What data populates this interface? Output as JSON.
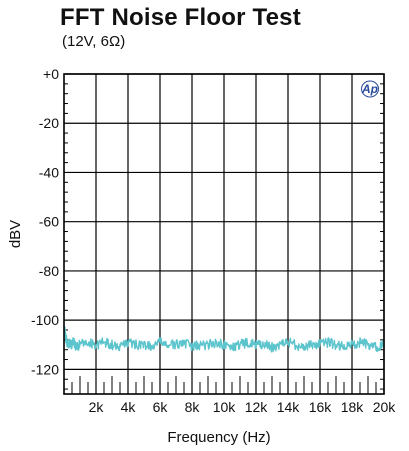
{
  "chart_data": {
    "type": "line",
    "title": "FFT Noise Floor Test",
    "subtitle": "(12V, 6Ω)",
    "xlabel": "Frequency (Hz)",
    "ylabel": "dBV",
    "xlim": [
      0,
      20000
    ],
    "ylim": [
      -130,
      0
    ],
    "y_ticks": [
      0,
      -20,
      -40,
      -60,
      -80,
      -100,
      -120
    ],
    "y_tick_labels": [
      "+0",
      "-20",
      "-40",
      "-60",
      "-80",
      "-100",
      "-120"
    ],
    "x_ticks": [
      2000,
      4000,
      6000,
      8000,
      10000,
      12000,
      14000,
      16000,
      18000,
      20000
    ],
    "x_tick_labels": [
      "2k",
      "4k",
      "6k",
      "8k",
      "10k",
      "12k",
      "14k",
      "16k",
      "18k",
      "20k"
    ],
    "grid": true,
    "logo": "Ap",
    "colors": {
      "series": "#5cc4cc",
      "grid": "#000000"
    },
    "series": [
      {
        "x": [
          20,
          100,
          200,
          400,
          600,
          800,
          1000,
          1500,
          2000,
          2500,
          3000,
          3500,
          4000,
          4500,
          5000,
          5500,
          6000,
          6500,
          7000,
          7500,
          8000,
          8500,
          9000,
          9500,
          10000,
          10500,
          11000,
          11500,
          12000,
          12500,
          13000,
          13500,
          14000,
          14500,
          15000,
          15500,
          16000,
          16500,
          17000,
          17500,
          18000,
          18500,
          19000,
          19500,
          20000
        ],
        "values": [
          -103,
          -107,
          -109,
          -110,
          -109,
          -111,
          -110,
          -109,
          -110,
          -109,
          -110,
          -111,
          -109,
          -110,
          -110,
          -111,
          -109,
          -110,
          -110,
          -109,
          -111,
          -110,
          -110,
          -109,
          -110,
          -111,
          -110,
          -109,
          -110,
          -110,
          -111,
          -110,
          -109,
          -110,
          -111,
          -110,
          -110,
          -109,
          -110,
          -111,
          -110,
          -109,
          -110,
          -111,
          -110
        ]
      }
    ]
  }
}
